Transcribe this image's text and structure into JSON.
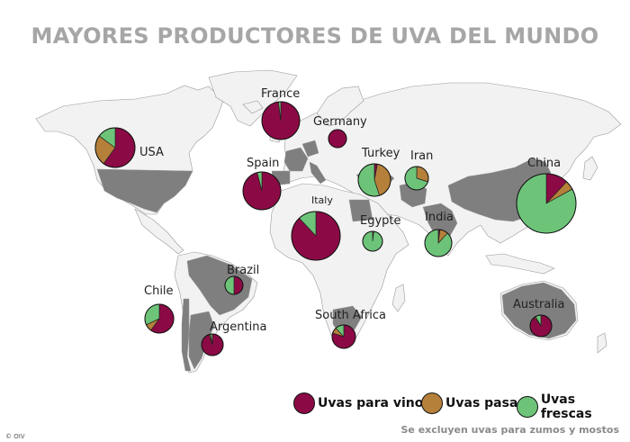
{
  "title": "MAYORES PRODUCTORES DE UVA DEL MUNDO",
  "legend": [
    {
      "label": "Uvas para vinos",
      "color": "#8b0a45"
    },
    {
      "label": "Uvas pasas",
      "color": "#b5803a"
    },
    {
      "label": "Uvas frescas",
      "color": "#6dc479"
    }
  ],
  "note": "Se excluyen uvas para zumos y mostos",
  "copyright": "© OIV",
  "colors": {
    "highlight_country": "#7f7f7f",
    "other_country": "#f2f2f2",
    "border": "#9a9a9a"
  },
  "countries": [
    {
      "name": "France",
      "wine": 0.98,
      "raisin": 0.0,
      "table": 0.02
    },
    {
      "name": "Germany",
      "wine": 1.0,
      "raisin": 0.0,
      "table": 0.0
    },
    {
      "name": "USA",
      "wine": 0.6,
      "raisin": 0.25,
      "table": 0.15
    },
    {
      "name": "Spain",
      "wine": 0.96,
      "raisin": 0.0,
      "table": 0.04
    },
    {
      "name": "Italy",
      "wine": 0.88,
      "raisin": 0.0,
      "table": 0.12
    },
    {
      "name": "Turkey",
      "wine": 0.03,
      "raisin": 0.42,
      "table": 0.55
    },
    {
      "name": "Iran",
      "wine": 0.0,
      "raisin": 0.3,
      "table": 0.7
    },
    {
      "name": "China",
      "wine": 0.12,
      "raisin": 0.05,
      "table": 0.83
    },
    {
      "name": "Egypte",
      "wine": 0.02,
      "raisin": 0.0,
      "table": 0.98
    },
    {
      "name": "India",
      "wine": 0.02,
      "raisin": 0.1,
      "table": 0.88
    },
    {
      "name": "Brazil",
      "wine": 0.5,
      "raisin": 0.0,
      "table": 0.5
    },
    {
      "name": "Chile",
      "wine": 0.6,
      "raisin": 0.08,
      "table": 0.32
    },
    {
      "name": "Argentina",
      "wine": 0.95,
      "raisin": 0.02,
      "table": 0.03
    },
    {
      "name": "South Africa",
      "wine": 0.8,
      "raisin": 0.08,
      "table": 0.12
    },
    {
      "name": "Australia",
      "wine": 0.9,
      "raisin": 0.02,
      "table": 0.08
    }
  ]
}
